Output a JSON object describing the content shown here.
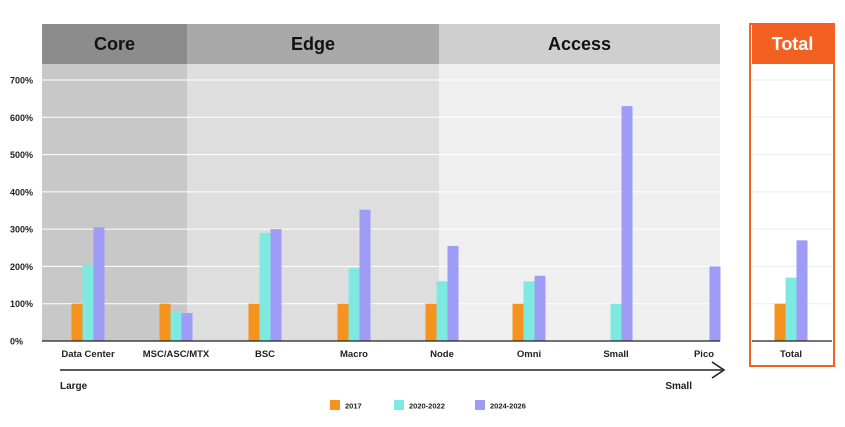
{
  "colors": {
    "core_header": "#8c8c8c",
    "core_bg": "#c8c8c8",
    "edge_header": "#a9a9a9",
    "edge_bg": "#dedede",
    "access_header": "#cfcfcf",
    "access_bg": "#efefef",
    "total_accent": "#f26122",
    "series": [
      "#f5931e",
      "#7de9e0",
      "#9e9cf7"
    ],
    "grid": "#ffffff",
    "axis": "#222222"
  },
  "chart_data": {
    "type": "bar",
    "y_ticks": [
      "0%",
      "100%",
      "200%",
      "300%",
      "400%",
      "500%",
      "600%",
      "700%"
    ],
    "ylim": [
      0,
      700
    ],
    "grid": true,
    "legend_position": "bottom-center",
    "segments": [
      {
        "label": "Core",
        "categories": [
          "Data Center",
          "MSC/ASC/MTX"
        ]
      },
      {
        "label": "Edge",
        "categories": [
          "BSC",
          "Macro",
          "Node"
        ]
      },
      {
        "label": "Access",
        "categories": [
          "Omni",
          "Small",
          "Pico"
        ]
      },
      {
        "label": "Total",
        "categories": [
          "Total"
        ]
      }
    ],
    "categories": [
      "Data Center",
      "MSC/ASC/MTX",
      "BSC",
      "Macro",
      "Node",
      "Omni",
      "Small",
      "Pico",
      "Total"
    ],
    "series": [
      {
        "name": "2017",
        "values": [
          100,
          100,
          100,
          100,
          100,
          100,
          null,
          null,
          100
        ]
      },
      {
        "name": "2020-2022",
        "values": [
          205,
          80,
          290,
          195,
          160,
          160,
          100,
          null,
          170
        ]
      },
      {
        "name": "2024-2026",
        "values": [
          305,
          75,
          300,
          352,
          255,
          175,
          630,
          200,
          270
        ]
      }
    ],
    "arrow": {
      "start_label": "Large",
      "end_label": "Small"
    }
  }
}
